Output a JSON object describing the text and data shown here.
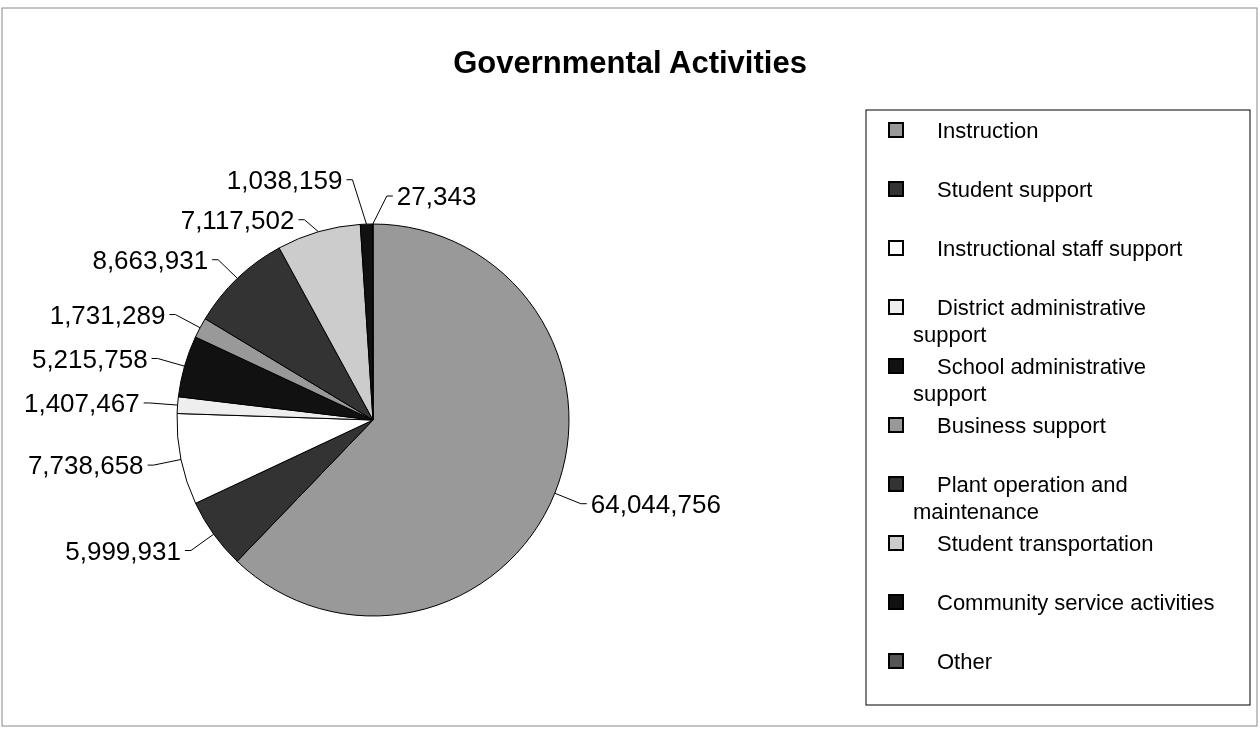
{
  "chart_data": {
    "type": "pie",
    "title": "Governmental Activities",
    "categories": [
      "Instruction",
      "Student support",
      "Instructional staff support",
      "District administrative support",
      "School administrative support",
      "Business support",
      "Plant operation and maintenance",
      "Student transportation",
      "Community service activities",
      "Other"
    ],
    "values": [
      64044756,
      5999931,
      7738658,
      1407467,
      5215758,
      1731289,
      8663931,
      7117502,
      1038159,
      27343
    ],
    "colors": [
      "#999999",
      "#333333",
      "#ffffff",
      "#eeeeee",
      "#111111",
      "#999999",
      "#333333",
      "#cccccc",
      "#111111",
      "#555555"
    ],
    "value_labels": [
      "64,044,756",
      "5,999,931",
      "7,738,658",
      "1,407,467",
      "5,215,758",
      "1,731,289",
      "8,663,931",
      "7,117,502",
      "1,038,159",
      "27,343"
    ],
    "legend": "right"
  }
}
